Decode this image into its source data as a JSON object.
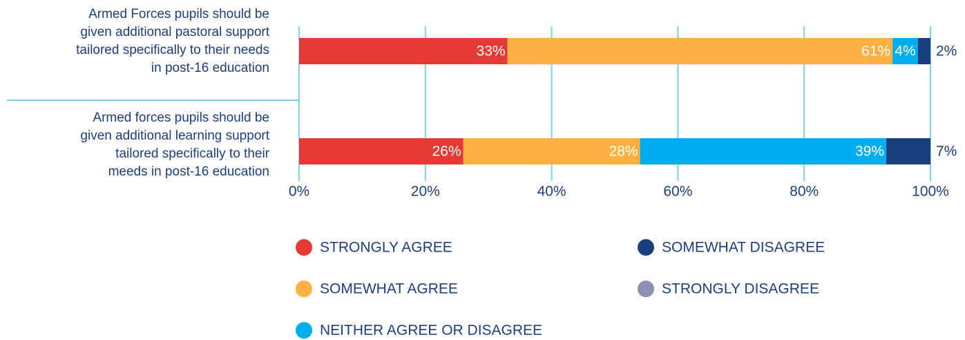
{
  "chart_data": {
    "type": "stacked_barh",
    "categories": [
      "Armed Forces pupils should be\ngiven additional pastoral support\ntailored specifically to their needs\nin post-16 education",
      "Armed forces pupils should be\ngiven additional learning support\ntailored specifically to their\nmeeds in post-16 education"
    ],
    "series": [
      {
        "name": "STRONGLY AGREE",
        "color": "#e63a36",
        "values": [
          33,
          26
        ],
        "value_labels": [
          "33%",
          "26%"
        ]
      },
      {
        "name": "SOMEWHAT AGREE",
        "color": "#fbb040",
        "values": [
          61,
          28
        ],
        "value_labels": [
          "61%",
          "28%"
        ]
      },
      {
        "name": "NEITHER AGREE OR DISAGREE",
        "color": "#00aeef",
        "values": [
          4,
          39
        ],
        "value_labels": [
          "4%",
          "39%"
        ]
      },
      {
        "name": "SOMEWHAT DISAGREE",
        "color": "#1b3f7a",
        "values": [
          2,
          7
        ],
        "value_labels": [
          "2%",
          "7%"
        ]
      },
      {
        "name": "STRONGLY DISAGREE",
        "color": "#8e8fb5",
        "values": [
          0,
          0
        ]
      }
    ],
    "xlim": [
      0,
      100
    ],
    "xticks": [
      {
        "value": 0,
        "label": "0%"
      },
      {
        "value": 20,
        "label": "20%"
      },
      {
        "value": 40,
        "label": "40%"
      },
      {
        "value": 60,
        "label": "60%"
      },
      {
        "value": 80,
        "label": "80%"
      },
      {
        "value": 100,
        "label": "100%"
      }
    ],
    "grid": true
  }
}
